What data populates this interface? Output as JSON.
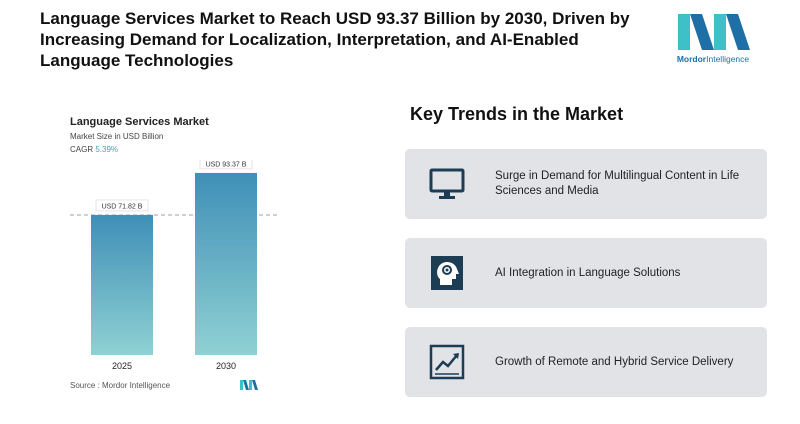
{
  "headline": "Language Services Market to Reach USD 93.37 Billion by 2030, Driven by Increasing Demand for Localization, Interpretation, and AI-Enabled Language Technologies",
  "brand": {
    "name_bold": "Mordor",
    "name_rest": "Intelligence",
    "color_dark": "#1d6fa5",
    "color_light": "#3fc0c9"
  },
  "chart_data": {
    "type": "bar",
    "title": "Language Services Market",
    "subtitle": "Market Size in USD Billion",
    "cagr_label": "CAGR",
    "cagr_value": "5.39%",
    "categories": [
      "2025",
      "2030"
    ],
    "values": [
      71.82,
      93.37
    ],
    "data_labels": [
      "USD 71.82 B",
      "USD 93.37 B"
    ],
    "ylim": [
      0,
      100
    ],
    "gradient": [
      "#3f8fb7",
      "#8fd1d3"
    ],
    "reference_line": "dashed at 2025 value",
    "source": "Source :  Mordor Intelligence"
  },
  "trends": {
    "title": "Key Trends in the Market",
    "items": [
      {
        "icon": "monitor-icon",
        "label": "Surge in Demand for Multilingual Content in Life Sciences and Media"
      },
      {
        "icon": "ai-head-icon",
        "label": "AI Integration in Language Solutions"
      },
      {
        "icon": "growth-chart-icon",
        "label": "Growth of Remote and Hybrid Service Delivery"
      }
    ]
  },
  "icon_color": "#1d3d55"
}
